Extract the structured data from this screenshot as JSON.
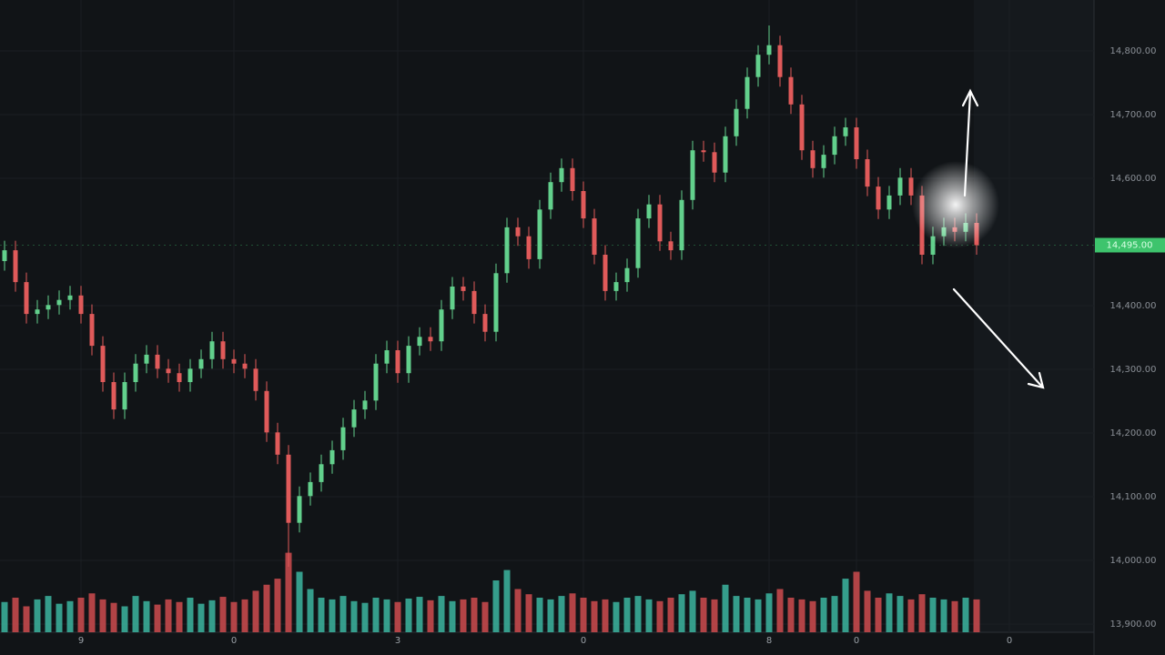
{
  "chart_data": {
    "type": "candlestick",
    "categories": [
      null,
      null,
      null,
      null,
      null,
      null,
      null,
      "9",
      null,
      null,
      null,
      null,
      null,
      null,
      null,
      null,
      null,
      null,
      null,
      null,
      null,
      "0",
      null,
      null,
      null,
      null,
      null,
      null,
      null,
      null,
      null,
      null,
      null,
      null,
      null,
      null,
      "3",
      null,
      null,
      null,
      null,
      null,
      null,
      null,
      null,
      null,
      null,
      null,
      null,
      null,
      null,
      null,
      null,
      "0",
      null,
      null,
      null,
      null,
      null,
      null,
      null,
      null,
      null,
      null,
      null,
      null,
      null,
      null,
      null,
      null,
      "8",
      null,
      null,
      null,
      null,
      null,
      null,
      null,
      "0",
      null,
      null,
      null,
      null,
      null,
      null,
      null,
      null,
      null,
      null,
      null,
      null,
      null,
      "0",
      null,
      null,
      null
    ],
    "open": [
      14470,
      14487,
      14437,
      14387,
      14394,
      14401,
      14409,
      14416,
      14387,
      14337,
      14280,
      14237,
      14280,
      14309,
      14323,
      14301,
      14294,
      14280,
      14301,
      14316,
      14344,
      14316,
      14309,
      14301,
      14266,
      14201,
      14166,
      14059,
      14101,
      14123,
      14151,
      14173,
      14209,
      14237,
      14251,
      14309,
      14330,
      14294,
      14337,
      14351,
      14344,
      14394,
      14430,
      14423,
      14387,
      14359,
      14451,
      14523,
      14509,
      14473,
      14551,
      14594,
      14616,
      14580,
      14537,
      14480,
      14423,
      14437,
      14459,
      14537,
      14559,
      14501,
      14487,
      14566,
      14644,
      14641,
      14609,
      14666,
      14709,
      14759,
      14794,
      14809,
      14759,
      14716,
      14644,
      14616,
      14637,
      14666,
      14680,
      14630,
      14587,
      14551,
      14573,
      14601,
      14573,
      14480,
      14509,
      14523,
      14516,
      14530,
      null,
      null,
      null,
      null,
      null,
      null
    ],
    "high": [
      14502,
      14502,
      14452,
      14409,
      14416,
      14424,
      14431,
      14431,
      14402,
      14352,
      14295,
      14295,
      14324,
      14338,
      14338,
      14316,
      14309,
      14316,
      14331,
      14359,
      14359,
      14331,
      14324,
      14316,
      14281,
      14216,
      14181,
      14116,
      14138,
      14166,
      14188,
      14224,
      14252,
      14266,
      14324,
      14345,
      14345,
      14352,
      14366,
      14366,
      14409,
      14445,
      14445,
      14438,
      14402,
      14466,
      14538,
      14538,
      14524,
      14566,
      14609,
      14631,
      14631,
      14595,
      14552,
      14495,
      14452,
      14474,
      14552,
      14574,
      14574,
      14516,
      14581,
      14659,
      14659,
      14656,
      14681,
      14724,
      14774,
      14809,
      14840,
      14824,
      14774,
      14731,
      14659,
      14652,
      14681,
      14695,
      14695,
      14645,
      14602,
      14588,
      14616,
      14616,
      14588,
      14524,
      14538,
      14538,
      14545,
      14545,
      null,
      null,
      null,
      null,
      null,
      null
    ],
    "low": [
      14455,
      14422,
      14372,
      14372,
      14379,
      14386,
      14394,
      14372,
      14322,
      14265,
      14222,
      14222,
      14265,
      14294,
      14286,
      14279,
      14265,
      14265,
      14286,
      14301,
      14301,
      14294,
      14286,
      14251,
      14186,
      14151,
      13990,
      14044,
      14086,
      14108,
      14136,
      14158,
      14194,
      14222,
      14236,
      14294,
      14279,
      14279,
      14322,
      14329,
      14329,
      14379,
      14408,
      14372,
      14344,
      14344,
      14436,
      14494,
      14458,
      14458,
      14536,
      14579,
      14565,
      14522,
      14465,
      14408,
      14408,
      14422,
      14444,
      14522,
      14486,
      14472,
      14472,
      14551,
      14626,
      14594,
      14594,
      14651,
      14694,
      14744,
      14779,
      14744,
      14701,
      14629,
      14601,
      14601,
      14622,
      14651,
      14615,
      14572,
      14536,
      14536,
      14558,
      14558,
      14465,
      14465,
      14494,
      14501,
      14501,
      14480,
      null,
      null,
      null,
      null,
      null,
      null
    ],
    "close": [
      14487,
      14437,
      14387,
      14394,
      14401,
      14409,
      14416,
      14387,
      14337,
      14280,
      14237,
      14280,
      14309,
      14323,
      14301,
      14294,
      14280,
      14301,
      14316,
      14344,
      14316,
      14309,
      14301,
      14266,
      14201,
      14166,
      14059,
      14101,
      14123,
      14151,
      14173,
      14209,
      14237,
      14251,
      14309,
      14330,
      14294,
      14337,
      14351,
      14344,
      14394,
      14430,
      14423,
      14387,
      14359,
      14451,
      14523,
      14509,
      14473,
      14551,
      14594,
      14616,
      14580,
      14537,
      14480,
      14423,
      14437,
      14459,
      14537,
      14559,
      14501,
      14487,
      14566,
      14644,
      14641,
      14609,
      14666,
      14709,
      14759,
      14794,
      14809,
      14759,
      14716,
      14644,
      14616,
      14637,
      14666,
      14680,
      14630,
      14587,
      14551,
      14573,
      14601,
      14573,
      14480,
      14509,
      14523,
      14516,
      14530,
      14495,
      null,
      null,
      null,
      null,
      null,
      null
    ],
    "volume": [
      35,
      40,
      30,
      38,
      42,
      33,
      36,
      40,
      45,
      38,
      34,
      30,
      42,
      36,
      32,
      38,
      35,
      40,
      33,
      37,
      41,
      35,
      38,
      48,
      55,
      62,
      92,
      70,
      50,
      40,
      38,
      42,
      36,
      34,
      40,
      38,
      35,
      39,
      41,
      37,
      42,
      36,
      38,
      40,
      35,
      60,
      72,
      50,
      44,
      40,
      38,
      42,
      45,
      40,
      36,
      38,
      35,
      40,
      42,
      38,
      36,
      40,
      44,
      48,
      40,
      38,
      55,
      42,
      40,
      38,
      45,
      50,
      40,
      38,
      36,
      40,
      42,
      62,
      70,
      48,
      40,
      45,
      42,
      38,
      44,
      40,
      38,
      36,
      40,
      38,
      null,
      null,
      null,
      null,
      null,
      null
    ],
    "volume_axis": "y2",
    "up_color": "#62d08c",
    "down_color": "#e05a5a",
    "volume_up_color": "#3cb5a0",
    "volume_down_color": "#cf4b4f",
    "ylim": [
      13880,
      14880
    ],
    "yticks": [
      {
        "value": 14800,
        "label": "14,800.00"
      },
      {
        "value": 14700,
        "label": "14,700.00"
      },
      {
        "value": 14600,
        "label": "14,600.00"
      },
      {
        "value": 14400,
        "label": "14,400.00"
      },
      {
        "value": 14300,
        "label": "14,300.00"
      },
      {
        "value": 14200,
        "label": "14,200.00"
      },
      {
        "value": 14100,
        "label": "14,100.00"
      },
      {
        "value": 14000,
        "label": "14,000.00"
      },
      {
        "value": 13900,
        "label": "13,900.00"
      }
    ],
    "y2lim": [
      0,
      100
    ],
    "current_price": {
      "value": 14495,
      "label": "14,495.00"
    },
    "current_price_color": "#3ec46d",
    "grid": true
  }
}
